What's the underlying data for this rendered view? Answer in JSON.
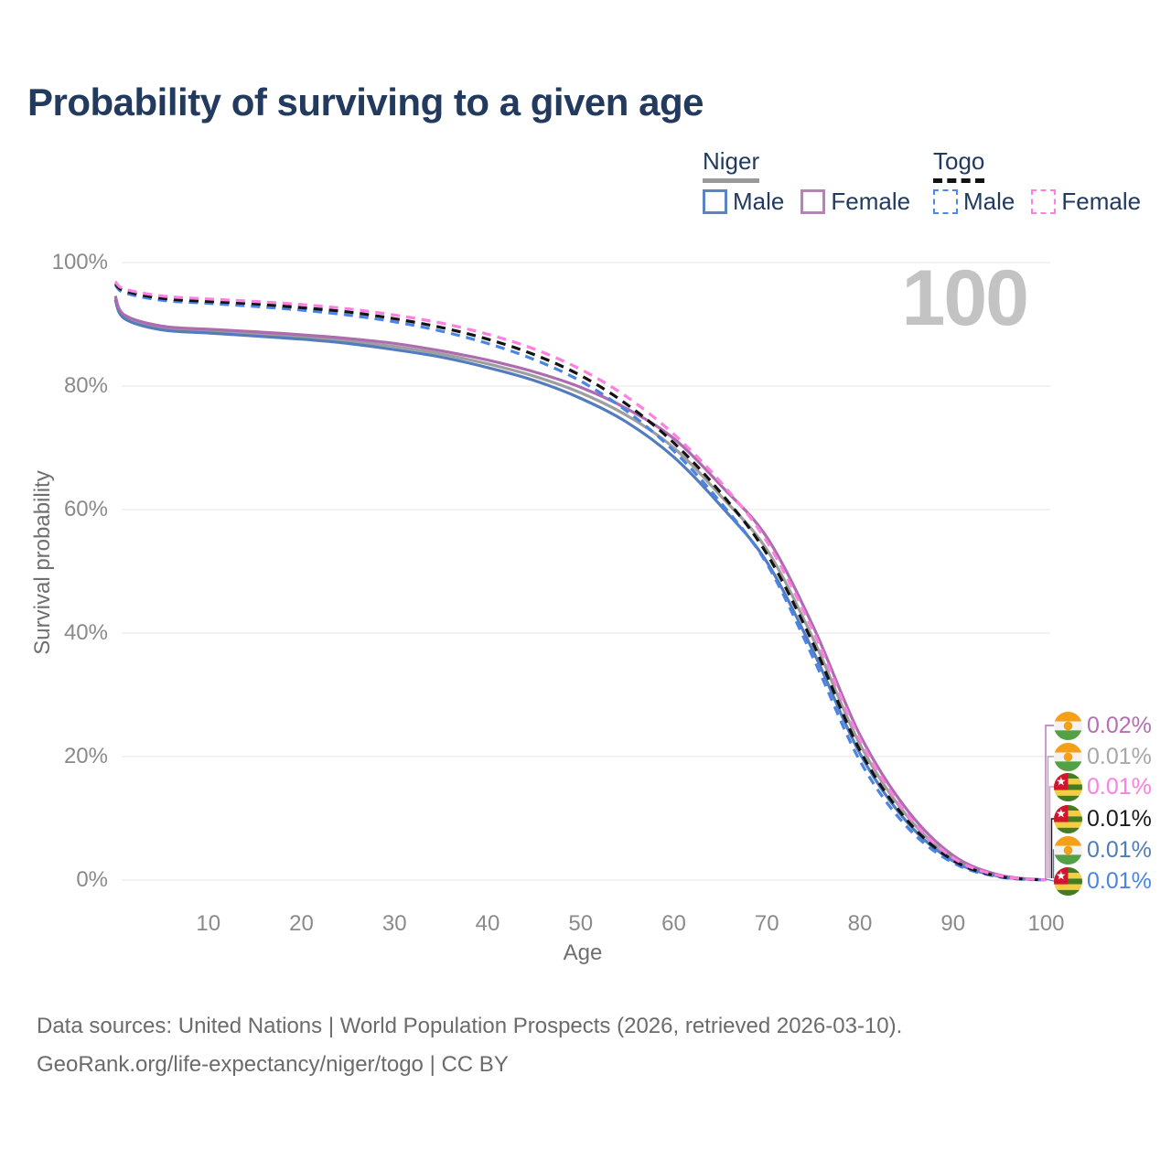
{
  "title": "Probability of surviving to a given age",
  "watermark_age": "100",
  "legend": {
    "groups": [
      {
        "label": "Niger",
        "line_style": "solid",
        "underline_color": "#9a9a9a",
        "items": [
          {
            "label": "Male",
            "color": "#5b84c4"
          },
          {
            "label": "Female",
            "color": "#bc7fba"
          }
        ]
      },
      {
        "label": "Togo",
        "line_style": "dashed",
        "underline_color": "#121212",
        "items": [
          {
            "label": "Male",
            "color": "#4f87ea"
          },
          {
            "label": "Female",
            "color": "#fc80e1"
          }
        ]
      }
    ]
  },
  "chart_data": {
    "type": "line",
    "title": "Probability of surviving to a given age",
    "xlabel": "Age",
    "ylabel": "Survival probability",
    "xlim": [
      0,
      100
    ],
    "ylim": [
      0,
      100
    ],
    "grid": true,
    "legend_position": "top-right",
    "x_ticks": [
      10,
      20,
      30,
      40,
      50,
      60,
      70,
      80,
      90,
      100
    ],
    "y_ticks": [
      {
        "value": 0,
        "label": "0%"
      },
      {
        "value": 20,
        "label": "20%"
      },
      {
        "value": 40,
        "label": "40%"
      },
      {
        "value": 60,
        "label": "60%"
      },
      {
        "value": 80,
        "label": "80%"
      },
      {
        "value": 100,
        "label": "100%"
      }
    ],
    "series": [
      {
        "country": "Niger",
        "group": "Female",
        "flag": "niger",
        "color": "#ae6cb0",
        "label_color": "#b46fb2",
        "dash": false,
        "z": 3,
        "end_label": "0.02%",
        "points": [
          [
            0,
            94.6
          ],
          [
            1,
            91.5
          ],
          [
            5,
            89.7
          ],
          [
            10,
            89.2
          ],
          [
            15,
            88.8
          ],
          [
            20,
            88.3
          ],
          [
            25,
            87.7
          ],
          [
            30,
            86.9
          ],
          [
            35,
            85.7
          ],
          [
            40,
            84.2
          ],
          [
            45,
            82.3
          ],
          [
            50,
            79.8
          ],
          [
            55,
            76.3
          ],
          [
            60,
            71.5
          ],
          [
            65,
            64.0
          ],
          [
            70,
            55.5
          ],
          [
            75,
            41.0
          ],
          [
            80,
            23.5
          ],
          [
            85,
            11.5
          ],
          [
            90,
            4.0
          ],
          [
            95,
            0.8
          ],
          [
            100,
            0.02
          ]
        ]
      },
      {
        "country": "Niger",
        "group": "All",
        "flag": "niger",
        "color": "#9e9e9e",
        "label_color": "#a7a7a7",
        "dash": false,
        "z": 1,
        "end_label": "0.01%",
        "points": [
          [
            0,
            94.3
          ],
          [
            1,
            91.2
          ],
          [
            5,
            89.4
          ],
          [
            10,
            88.9
          ],
          [
            15,
            88.5
          ],
          [
            20,
            87.9
          ],
          [
            25,
            87.3
          ],
          [
            30,
            86.4
          ],
          [
            35,
            85.2
          ],
          [
            40,
            83.6
          ],
          [
            45,
            81.6
          ],
          [
            50,
            78.9
          ],
          [
            55,
            75.2
          ],
          [
            60,
            70.0
          ],
          [
            65,
            62.3
          ],
          [
            70,
            53.5
          ],
          [
            75,
            39.0
          ],
          [
            80,
            22.0
          ],
          [
            85,
            10.5
          ],
          [
            90,
            3.5
          ],
          [
            95,
            0.7
          ],
          [
            100,
            0.01
          ]
        ]
      },
      {
        "country": "Togo",
        "group": "Female",
        "flag": "togo",
        "color": "#fc80e1",
        "label_color": "#fc80e1",
        "dash": true,
        "z": 6,
        "end_label": "0.01%",
        "points": [
          [
            0,
            96.9
          ],
          [
            1,
            95.7
          ],
          [
            5,
            94.6
          ],
          [
            10,
            94.1
          ],
          [
            15,
            93.7
          ],
          [
            20,
            93.2
          ],
          [
            25,
            92.5
          ],
          [
            30,
            91.5
          ],
          [
            35,
            90.2
          ],
          [
            40,
            88.4
          ],
          [
            45,
            86.0
          ],
          [
            50,
            82.7
          ],
          [
            55,
            78.2
          ],
          [
            60,
            72.2
          ],
          [
            65,
            64.5
          ],
          [
            70,
            54.8
          ],
          [
            75,
            40.2
          ],
          [
            80,
            22.8
          ],
          [
            85,
            10.8
          ],
          [
            90,
            3.6
          ],
          [
            95,
            0.7
          ],
          [
            100,
            0.01
          ]
        ]
      },
      {
        "country": "Togo",
        "group": "All",
        "flag": "togo",
        "color": "#141414",
        "label_color": "#1a1a1a",
        "dash": true,
        "z": 5,
        "end_label": "0.01%",
        "points": [
          [
            0,
            96.6
          ],
          [
            1,
            95.4
          ],
          [
            5,
            94.2
          ],
          [
            10,
            93.7
          ],
          [
            15,
            93.3
          ],
          [
            20,
            92.7
          ],
          [
            25,
            92.0
          ],
          [
            30,
            90.9
          ],
          [
            35,
            89.5
          ],
          [
            40,
            87.6
          ],
          [
            45,
            85.1
          ],
          [
            50,
            81.7
          ],
          [
            55,
            77.0
          ],
          [
            60,
            70.8
          ],
          [
            65,
            62.8
          ],
          [
            70,
            52.8
          ],
          [
            75,
            38.2
          ],
          [
            80,
            21.0
          ],
          [
            85,
            9.8
          ],
          [
            90,
            3.2
          ],
          [
            95,
            0.6
          ],
          [
            100,
            0.01
          ]
        ]
      },
      {
        "country": "Niger",
        "group": "Male",
        "flag": "niger",
        "color": "#527cbe",
        "label_color": "#4f7bb8",
        "dash": false,
        "z": 2,
        "end_label": "0.01%",
        "points": [
          [
            0,
            94.0
          ],
          [
            1,
            90.9
          ],
          [
            5,
            89.1
          ],
          [
            10,
            88.6
          ],
          [
            15,
            88.1
          ],
          [
            20,
            87.6
          ],
          [
            25,
            86.9
          ],
          [
            30,
            85.9
          ],
          [
            35,
            84.7
          ],
          [
            40,
            83.0
          ],
          [
            45,
            80.9
          ],
          [
            50,
            78.0
          ],
          [
            55,
            74.1
          ],
          [
            60,
            68.5
          ],
          [
            65,
            60.7
          ],
          [
            70,
            51.5
          ],
          [
            75,
            37.0
          ],
          [
            80,
            20.5
          ],
          [
            85,
            9.5
          ],
          [
            90,
            3.1
          ],
          [
            95,
            0.6
          ],
          [
            100,
            0.01
          ]
        ]
      },
      {
        "country": "Togo",
        "group": "Male",
        "flag": "togo",
        "color": "#4a84e4",
        "label_color": "#4a84e4",
        "dash": true,
        "z": 4,
        "end_label": "0.01%",
        "points": [
          [
            0,
            96.4
          ],
          [
            1,
            95.1
          ],
          [
            5,
            93.9
          ],
          [
            10,
            93.4
          ],
          [
            15,
            92.9
          ],
          [
            20,
            92.3
          ],
          [
            25,
            91.5
          ],
          [
            30,
            90.4
          ],
          [
            35,
            88.9
          ],
          [
            40,
            86.9
          ],
          [
            45,
            84.3
          ],
          [
            50,
            80.8
          ],
          [
            55,
            75.9
          ],
          [
            60,
            69.5
          ],
          [
            65,
            61.2
          ],
          [
            70,
            51.2
          ],
          [
            75,
            35.9
          ],
          [
            80,
            19.3
          ],
          [
            85,
            8.7
          ],
          [
            90,
            2.8
          ],
          [
            95,
            0.5
          ],
          [
            100,
            0.01
          ]
        ]
      }
    ]
  },
  "footer": {
    "line1": "Data sources: United Nations | World Population Prospects (2026, retrieved 2026-03-10).",
    "line2": "GeoRank.org/life-expectancy/niger/togo | CC BY"
  }
}
